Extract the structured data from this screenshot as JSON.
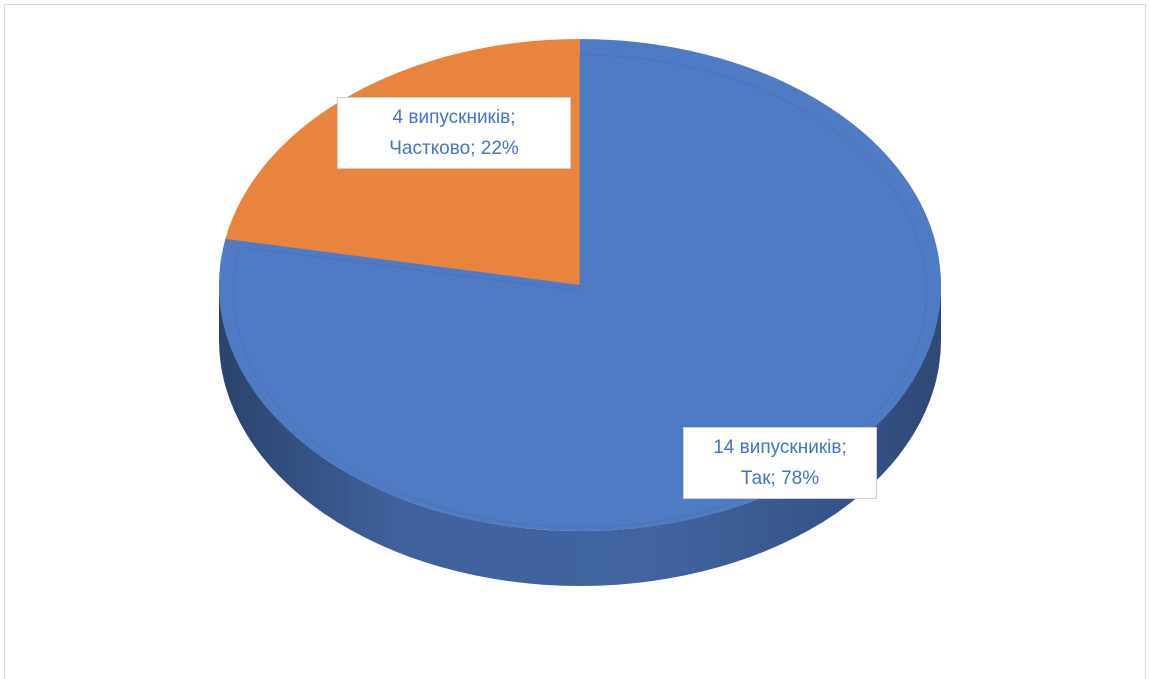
{
  "chart_data": {
    "type": "pie",
    "style": "3d",
    "slices": [
      {
        "category": "Так",
        "count": 14,
        "percent": 78,
        "color": "#4f7ac4",
        "label_line1": "14 випускників;",
        "label_line2": "Так; 78%"
      },
      {
        "category": "Частково",
        "count": 4,
        "percent": 22,
        "color": "#e8843e",
        "label_line1": "4 випускників;",
        "label_line2": "Частково; 22%"
      }
    ],
    "legend": "none"
  }
}
